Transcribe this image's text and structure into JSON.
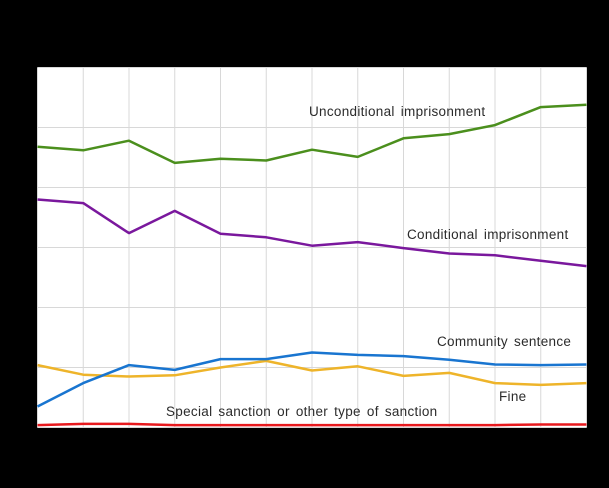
{
  "canvas": {
    "background_color": "#000000",
    "plot_background_color": "#ffffff",
    "grid_color": "#d8d8d8",
    "label_text_color": "#2b2b2b"
  },
  "chart_data": {
    "type": "line",
    "title": "",
    "xlabel": "",
    "ylabel": "",
    "axis_tick_labels_visible": false,
    "grid": true,
    "xlim": [
      0,
      12
    ],
    "ylim": [
      0,
      6
    ],
    "y_unit_note": "values measured in horizontal-gridline intervals from the bottom axis (no numeric axis labels are visible in the image)",
    "x": [
      0,
      1,
      2,
      3,
      4,
      5,
      6,
      7,
      8,
      9,
      10,
      11,
      12
    ],
    "series": [
      {
        "name": "Unconditional imprisonment",
        "color": "#4b8f1d",
        "values": [
          4.68,
          4.62,
          4.78,
          4.41,
          4.48,
          4.45,
          4.63,
          4.51,
          4.82,
          4.89,
          5.04,
          5.34,
          5.38
        ]
      },
      {
        "name": "Conditional imprisonment",
        "color": "#7a189d",
        "values": [
          3.8,
          3.74,
          3.24,
          3.61,
          3.23,
          3.17,
          3.03,
          3.09,
          2.99,
          2.9,
          2.87,
          2.78,
          2.69
        ]
      },
      {
        "name": "Fine",
        "color": "#eeb42a",
        "values": [
          1.04,
          0.88,
          0.85,
          0.87,
          1.0,
          1.11,
          0.95,
          1.02,
          0.86,
          0.91,
          0.74,
          0.71,
          0.74
        ]
      },
      {
        "name": "Community sentence",
        "color": "#1975d0",
        "values": [
          0.35,
          0.74,
          1.04,
          0.96,
          1.14,
          1.14,
          1.25,
          1.21,
          1.19,
          1.13,
          1.05,
          1.04,
          1.05
        ]
      },
      {
        "name": "Special sanction or other type of sanction",
        "color": "#e8191d",
        "values": [
          0.04,
          0.06,
          0.06,
          0.04,
          0.04,
          0.04,
          0.04,
          0.04,
          0.04,
          0.04,
          0.04,
          0.05,
          0.05
        ]
      }
    ],
    "legend": "inline text annotations next to each line"
  }
}
